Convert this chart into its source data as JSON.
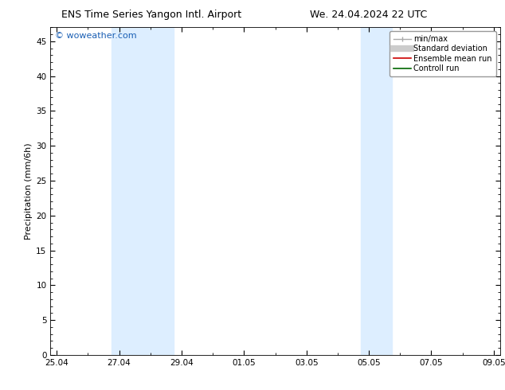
{
  "title_left": "ENS Time Series Yangon Intl. Airport",
  "title_right": "We. 24.04.2024 22 UTC",
  "ylabel": "Precipitation (mm/6h)",
  "ylim": [
    0,
    47
  ],
  "yticks": [
    0,
    5,
    10,
    15,
    20,
    25,
    30,
    35,
    40,
    45
  ],
  "xtick_labels": [
    "25.04",
    "27.04",
    "29.04",
    "01.05",
    "03.05",
    "05.05",
    "07.05",
    "09.05"
  ],
  "xtick_positions": [
    0,
    2,
    4,
    6,
    8,
    10,
    12,
    14
  ],
  "x_total": 14,
  "watermark": "© woweather.com",
  "watermark_color": "#1a5fb4",
  "background_color": "#ffffff",
  "plot_bg_color": "#ffffff",
  "shading_color": "#ddeeff",
  "shading_regions": [
    [
      1.75,
      2.25
    ],
    [
      2.25,
      3.75
    ],
    [
      9.75,
      10.25
    ],
    [
      10.25,
      10.75
    ]
  ],
  "title_fontsize": 9,
  "axis_fontsize": 8,
  "tick_fontsize": 7.5,
  "watermark_fontsize": 8,
  "legend_fontsize": 7,
  "font_family": "DejaVu Sans"
}
